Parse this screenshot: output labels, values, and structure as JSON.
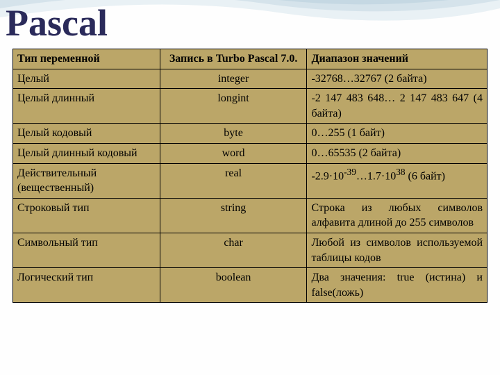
{
  "title": "Pascal",
  "table": {
    "background_color": "#bba668",
    "border_color": "#000000",
    "columns": [
      {
        "header": "Тип переменной",
        "class": "col1"
      },
      {
        "header": "Запись в Turbo Pascal 7.0.",
        "class": "col2"
      },
      {
        "header": "Диапазон значений",
        "class": "col3"
      }
    ],
    "rows": [
      {
        "col1": "Целый",
        "col2": "integer",
        "col3": "-32768…32767 (2 байта)"
      },
      {
        "col1": "Целый длинный",
        "col2": "longint",
        "col3": "-2 147 483 648… 2 147 483 647 (4 байта)"
      },
      {
        "col1": "Целый кодовый",
        "col2": "byte",
        "col3": "0…255 (1 байт)"
      },
      {
        "col1": "Целый длинный кодовый",
        "col2": "word",
        "col3": "0…65535 (2 байта)"
      },
      {
        "col1": "Действительный (вещественный)",
        "col2": "real",
        "col3_html": "-2.9·10<sup>-39</sup>…1.7·10<sup>38</sup> (6 байт)"
      },
      {
        "col1": "Строковый тип",
        "col2": "string",
        "col3": "Строка из любых символов алфавита длиной до 255 символов"
      },
      {
        "col1": "Символьный тип",
        "col2": "char",
        "col3": "Любой из символов используемой таблицы кодов"
      },
      {
        "col1": "Логический тип",
        "col2": "boolean",
        "col3": "Два значения: true (истина) и false(ложь)"
      }
    ]
  },
  "wave": {
    "colors": [
      "#5a8ba8",
      "#a8c4d4",
      "#d4e4ec",
      "#ffffff"
    ]
  }
}
